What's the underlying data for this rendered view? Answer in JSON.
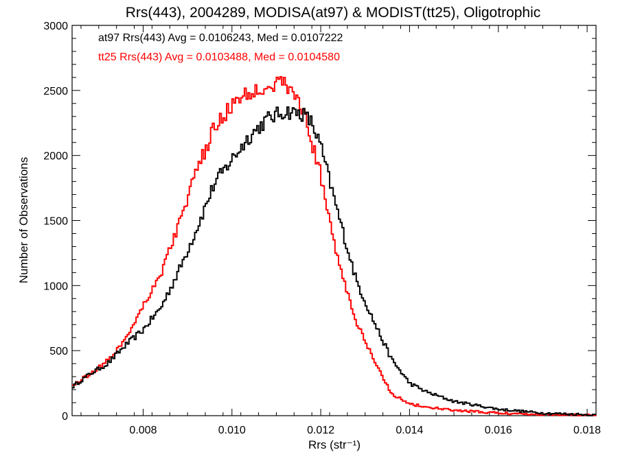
{
  "chart_data": {
    "type": "line",
    "title": "Rrs(443), 2004289, MODISA(at97) & MODIST(tt25), Oligotrophic",
    "xlabel": "Rrs (str⁻¹)",
    "ylabel": "Number of Observations",
    "xlim": [
      0.0064,
      0.0182
    ],
    "ylim": [
      0,
      3000
    ],
    "xticks": [
      0.008,
      0.01,
      0.012,
      0.014,
      0.016,
      0.018
    ],
    "xtick_labels": [
      "0.008",
      "0.010",
      "0.012",
      "0.014",
      "0.016",
      "0.018"
    ],
    "yticks": [
      0,
      500,
      1000,
      1500,
      2000,
      2500,
      3000
    ],
    "ytick_labels": [
      "0",
      "500",
      "1000",
      "1500",
      "2000",
      "2500",
      "3000"
    ],
    "grid": false,
    "legend_position": "top-left",
    "series": [
      {
        "name": "at97 Rrs(443) Avg = 0.0106243, Med = 0.0107222",
        "color": "#000000",
        "x": [
          0.0064,
          0.0068,
          0.0072,
          0.0076,
          0.008,
          0.0084,
          0.0088,
          0.0092,
          0.0096,
          0.01,
          0.0104,
          0.0108,
          0.0112,
          0.0116,
          0.0118,
          0.012,
          0.0124,
          0.0128,
          0.0132,
          0.0136,
          0.014,
          0.0144,
          0.015,
          0.016,
          0.017,
          0.0182
        ],
        "y": [
          220,
          320,
          400,
          540,
          660,
          830,
          1110,
          1430,
          1780,
          1970,
          2150,
          2280,
          2340,
          2320,
          2250,
          2070,
          1540,
          1040,
          720,
          430,
          250,
          180,
          110,
          50,
          20,
          5
        ]
      },
      {
        "name": "tt25 Rrs(443) Avg = 0.0103488, Med = 0.0104580",
        "color": "#ff0000",
        "x": [
          0.0064,
          0.0068,
          0.0072,
          0.0076,
          0.008,
          0.0084,
          0.0088,
          0.0092,
          0.0096,
          0.01,
          0.0104,
          0.0108,
          0.0112,
          0.0116,
          0.0118,
          0.012,
          0.0124,
          0.0128,
          0.0132,
          0.0136,
          0.014,
          0.0144,
          0.015,
          0.016,
          0.017,
          0.0182
        ],
        "y": [
          230,
          320,
          420,
          590,
          850,
          1090,
          1470,
          1870,
          2210,
          2390,
          2480,
          2540,
          2560,
          2360,
          2100,
          1850,
          1180,
          720,
          420,
          170,
          90,
          65,
          40,
          20,
          10,
          5
        ]
      }
    ]
  }
}
